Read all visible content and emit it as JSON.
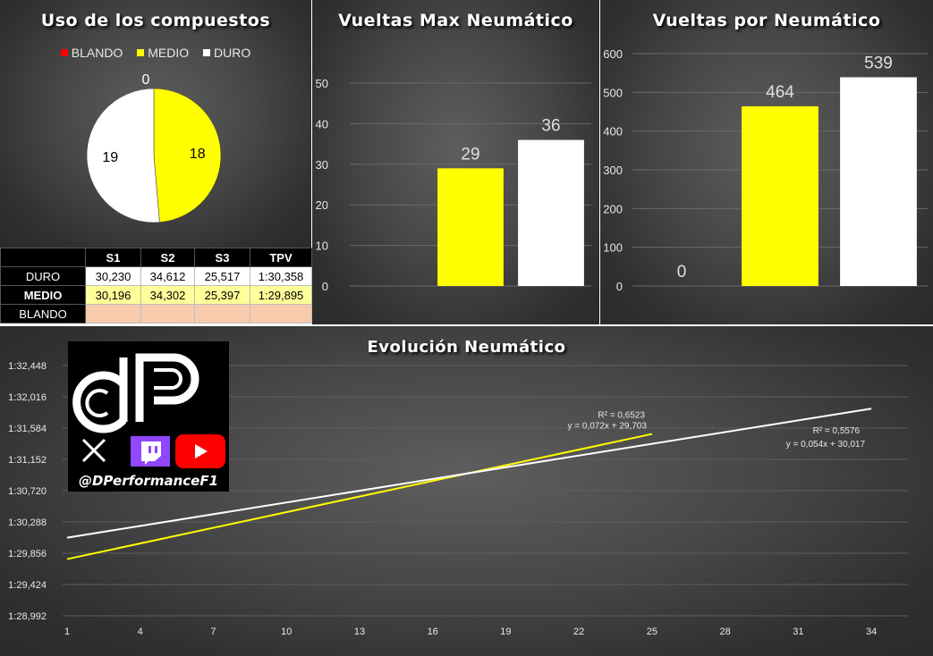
{
  "colors": {
    "blando": "#ff0000",
    "medio": "#ffff00",
    "duro": "#ffffff"
  },
  "pie_panel": {
    "title": "Uso de los compuestos",
    "legend": [
      "BLANDO",
      "MEDIO",
      "DURO"
    ]
  },
  "bar_max_panel": {
    "title": "Vueltas Max Neumático"
  },
  "bar_total_panel": {
    "title": "Vueltas por Neumático"
  },
  "line_panel": {
    "title": "Evolución Neumático"
  },
  "table": {
    "headers": [
      "",
      "S1",
      "S2",
      "S3",
      "TPV"
    ],
    "rows": [
      {
        "label": "DURO",
        "values": [
          "30,230",
          "34,612",
          "25,517",
          "1:30,358"
        ]
      },
      {
        "label": "MEDIO",
        "values": [
          "30,196",
          "34,302",
          "25,397",
          "1:29,895"
        ]
      },
      {
        "label": "BLANDO",
        "values": [
          "",
          "",
          "",
          ""
        ]
      }
    ]
  },
  "logo": {
    "handle": "@DPerformanceF1",
    "icons": [
      "x-icon",
      "twitch-icon",
      "youtube-icon"
    ]
  },
  "chart_data": [
    {
      "type": "pie",
      "title": "Uso de los compuestos",
      "categories": [
        "BLANDO",
        "MEDIO",
        "DURO"
      ],
      "values": [
        0,
        18,
        19
      ],
      "data_labels": [
        "0",
        "18",
        "19"
      ],
      "legend_position": "top"
    },
    {
      "type": "bar",
      "title": "Vueltas Max Neumático",
      "categories": [
        "BLANDO",
        "MEDIO",
        "DURO"
      ],
      "values": [
        0,
        29,
        36
      ],
      "data_labels": [
        "",
        "29",
        "36"
      ],
      "ylim": [
        0,
        50
      ],
      "yticks": [
        "0",
        "10",
        "20",
        "30",
        "40",
        "50"
      ],
      "grid": true
    },
    {
      "type": "bar",
      "title": "Vueltas por Neumático",
      "categories": [
        "BLANDO",
        "MEDIO",
        "DURO"
      ],
      "values": [
        0,
        464,
        539
      ],
      "data_labels": [
        "0",
        "464",
        "539"
      ],
      "ylim": [
        0,
        600
      ],
      "yticks": [
        "0",
        "100",
        "200",
        "300",
        "400",
        "500",
        "600"
      ],
      "grid": true
    },
    {
      "type": "line",
      "title": "Evolución Neumático",
      "ylim": [
        88.992,
        92.448
      ],
      "yticks": [
        "1:28,992",
        "1:29,424",
        "1:29,856",
        "1:30,288",
        "1:30,720",
        "1:31,152",
        "1:31,584",
        "1:32,016",
        "1:32,448"
      ],
      "xticks": [
        "1",
        "4",
        "7",
        "10",
        "13",
        "16",
        "19",
        "22",
        "25",
        "28",
        "31",
        "34"
      ],
      "xlim": [
        1,
        35.5
      ],
      "grid": true,
      "series": [
        {
          "color": "#ffff00",
          "x": [
            1,
            25
          ],
          "y": [
            89.775,
            91.503
          ],
          "equation": "y = 0,072x + 29,703",
          "r2": "R² = 0,6523"
        },
        {
          "color": "#ffffff",
          "x": [
            1,
            34
          ],
          "y": [
            90.071,
            91.853
          ],
          "equation": "y = 0,054x + 30,017",
          "r2": "R² = 0,5576"
        }
      ]
    }
  ]
}
